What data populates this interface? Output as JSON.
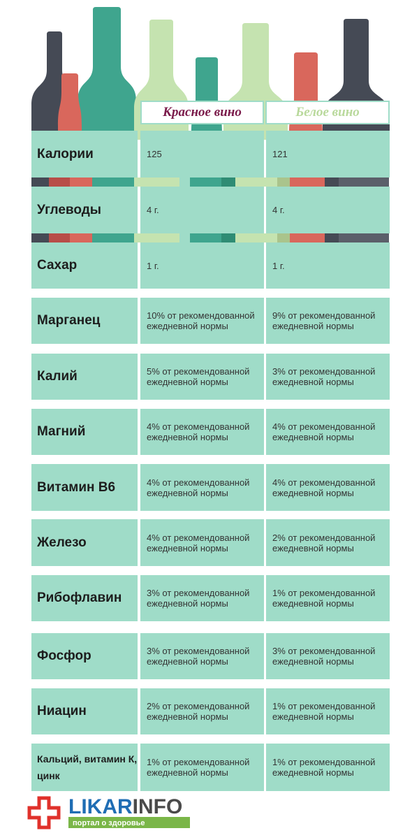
{
  "header": {
    "columns": [
      "Красное вино",
      "Белое вино"
    ]
  },
  "table": {
    "rows": [
      [
        "Калории",
        "125",
        "121"
      ],
      [
        "Углеводы",
        "4 г.",
        "4 г."
      ],
      [
        "Сахар",
        "1 г.",
        "1 г."
      ],
      [
        "Марганец",
        "10% от рекомендованной ежедневной нормы",
        "9% от рекомендованной ежедневной нормы"
      ],
      [
        "Калий",
        "5% от рекомендованной ежедневной нормы",
        "3% от рекомендованной ежедневной нормы"
      ],
      [
        "Магний",
        "4% от рекомендованной ежедневной нормы",
        "4% от рекомендованной ежедневной нормы"
      ],
      [
        "Витамин B6",
        "4% от рекомендованной ежедневной нормы",
        "4% от рекомендованной ежедневной нормы"
      ],
      [
        "Железо",
        "4% от рекомендованной ежедневной нормы",
        "2% от рекомендованной ежедневной нормы"
      ],
      [
        "Рибофлавин",
        "3% от рекомендованной ежедневной нормы",
        "1% от рекомендованной ежедневной нормы"
      ],
      [
        "Фосфор",
        "3% от рекомендованной ежедневной нормы",
        "3% от рекомендованной ежедневной нормы"
      ],
      [
        "Ниацин",
        "2% от рекомендованной ежедневной нормы",
        "1% от рекомендованной ежедневной нормы"
      ],
      [
        "Кальций, витамин К, цинк",
        "1% от рекомендованной ежедневной нормы",
        "1% от рекомендованной ежедневной нормы"
      ]
    ]
  },
  "logo": {
    "brand_left": "LIKAR",
    "brand_right": "INFO",
    "tagline": "портал о здоровье"
  }
}
